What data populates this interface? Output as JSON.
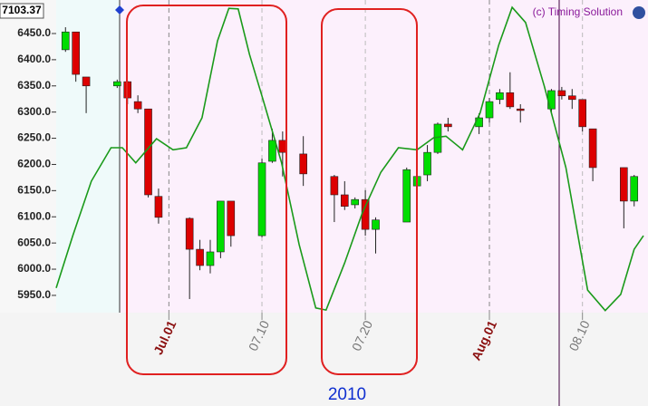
{
  "chart_data": {
    "type": "candlestick",
    "price_label": "7103.37",
    "credit": "(c) Timing Solution",
    "xlabel": "2010",
    "xlim": [
      -9.9,
      46.9
    ],
    "ylim": [
      5917,
      6514
    ],
    "xticks": [
      {
        "value": 1,
        "label": "Jul.01"
      },
      {
        "value": 10,
        "label": "07.10"
      },
      {
        "value": 20,
        "label": "07.20"
      },
      {
        "value": 32,
        "label": "Aug.01"
      },
      {
        "value": 41,
        "label": "08.10"
      }
    ],
    "yticks": [
      {
        "value": 5950,
        "label": "5950.0"
      },
      {
        "value": 6000,
        "label": "6000.0"
      },
      {
        "value": 6050,
        "label": "6050.0"
      },
      {
        "value": 6100,
        "label": "6100.0"
      },
      {
        "value": 6150,
        "label": "6150.0"
      },
      {
        "value": 6200,
        "label": "6200.0"
      },
      {
        "value": 6250,
        "label": "6250.0"
      },
      {
        "value": 6300,
        "label": "6300.0"
      },
      {
        "value": 6350,
        "label": "6350.0"
      },
      {
        "value": 6400,
        "label": "6400.0"
      },
      {
        "value": 6450,
        "label": "6450.0"
      }
    ],
    "up_color": "#00dd00",
    "down_color": "#dd0000",
    "candles": {
      "x": [
        -9,
        -8,
        -7,
        -4,
        -3,
        -2,
        -1,
        0,
        3,
        4,
        5,
        6,
        7,
        10,
        11,
        12,
        14,
        17,
        18,
        19,
        20,
        21,
        24,
        25,
        26,
        27,
        28,
        31,
        32,
        33,
        34,
        35,
        38,
        39,
        40,
        41,
        42,
        45,
        46
      ],
      "open": [
        6419,
        6453,
        6367,
        6350,
        6358,
        6320,
        6306,
        6139,
        6097,
        6038,
        6007,
        6033,
        6130,
        6064,
        6206,
        6246,
        6220,
        6177,
        6142,
        6123,
        6133,
        6076,
        6090,
        6159,
        6180,
        6223,
        6277,
        6272,
        6289,
        6324,
        6337,
        6306,
        6306,
        6341,
        6331,
        6324,
        6268,
        6194,
        6130
      ],
      "high": [
        6462,
        6453,
        6367,
        6362,
        6360,
        6332,
        6306,
        6154,
        6099,
        6056,
        6056,
        6130,
        6130,
        6211,
        6268,
        6263,
        6254,
        6180,
        6168,
        6137,
        6151,
        6099,
        6194,
        6203,
        6237,
        6280,
        6289,
        6298,
        6327,
        6344,
        6376,
        6315,
        6344,
        6348,
        6344,
        6324,
        6268,
        6194,
        6180
      ],
      "low": [
        6415,
        6358,
        6298,
        6346,
        6315,
        6298,
        6137,
        6087,
        5943,
        5998,
        5992,
        6021,
        6043,
        6061,
        6203,
        6177,
        6159,
        6090,
        6113,
        6116,
        6064,
        6030,
        6090,
        6151,
        6168,
        6220,
        6263,
        6258,
        6280,
        6315,
        6306,
        6280,
        6298,
        6324,
        6306,
        6263,
        6168,
        6078,
        6120
      ],
      "close": [
        6453,
        6372,
        6350,
        6358,
        6327,
        6306,
        6142,
        6099,
        6038,
        6007,
        6033,
        6130,
        6064,
        6203,
        6246,
        6223,
        6182,
        6142,
        6120,
        6133,
        6076,
        6094,
        6190,
        6177,
        6223,
        6277,
        6272,
        6289,
        6320,
        6337,
        6310,
        6303,
        6341,
        6331,
        6324,
        6272,
        6194,
        6130,
        6177
      ]
    },
    "line": {
      "color": "#1a9a1a",
      "x": [
        -9.9,
        -8.3,
        -6.5,
        -4.6,
        -3.5,
        -2.2,
        -0.2,
        1.4,
        2.7,
        4.2,
        5.7,
        6.8,
        7.7,
        8.8,
        10.1,
        11.9,
        13.6,
        15.2,
        16.2,
        18.0,
        19.7,
        21.5,
        23.2,
        25.0,
        26.6,
        27.8,
        29.4,
        31.1,
        32.9,
        34.2,
        35.5,
        37.3,
        39.4,
        41.5,
        43.2,
        44.7,
        46.0,
        46.9
      ],
      "values": [
        5964,
        6064,
        6168,
        6232,
        6232,
        6203,
        6249,
        6228,
        6232,
        6289,
        6436,
        6498,
        6497,
        6410,
        6324,
        6203,
        6047,
        5926,
        5922,
        6012,
        6107,
        6185,
        6232,
        6228,
        6251,
        6254,
        6228,
        6298,
        6428,
        6500,
        6471,
        6350,
        6194,
        5960,
        5921,
        5952,
        6038,
        6064
      ]
    }
  }
}
